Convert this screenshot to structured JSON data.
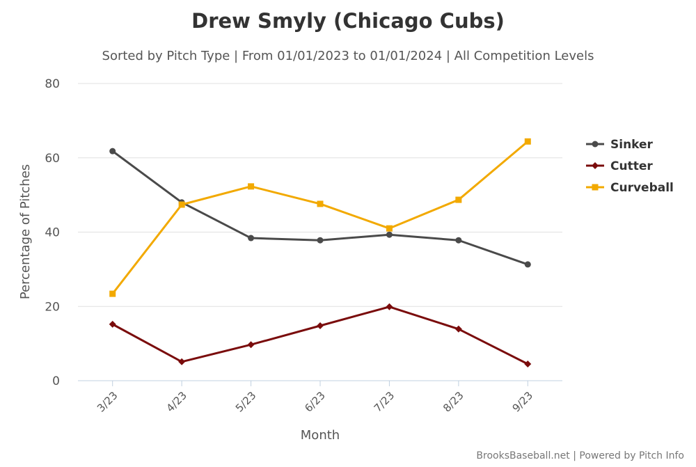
{
  "chart_data": {
    "type": "line",
    "title": "Drew Smyly (Chicago Cubs)",
    "subtitle": "Sorted by Pitch Type | From 01/01/2023 to 01/01/2024 | All Competition Levels",
    "xlabel": "Month",
    "ylabel": "Percentage of Pitches",
    "categories": [
      "3/23",
      "4/23",
      "5/23",
      "6/23",
      "7/23",
      "8/23",
      "9/23"
    ],
    "ylim": [
      0,
      80
    ],
    "yticks": [
      0,
      20,
      40,
      60,
      80
    ],
    "grid": true,
    "legend_placement": "right",
    "series": [
      {
        "name": "Sinker",
        "color": "#4a4a4a",
        "marker": "circle",
        "values": [
          61.8,
          48.0,
          38.4,
          37.8,
          39.3,
          37.8,
          31.3
        ]
      },
      {
        "name": "Cutter",
        "color": "#7a0c0c",
        "marker": "diamond",
        "values": [
          15.2,
          5.1,
          9.7,
          14.8,
          19.9,
          13.9,
          4.5
        ]
      },
      {
        "name": "Curveball",
        "color": "#f2a900",
        "marker": "square",
        "values": [
          23.4,
          47.4,
          52.3,
          47.6,
          41.0,
          48.7,
          64.4
        ]
      }
    ],
    "credit": "BrooksBaseball.net | Powered by Pitch Info"
  }
}
